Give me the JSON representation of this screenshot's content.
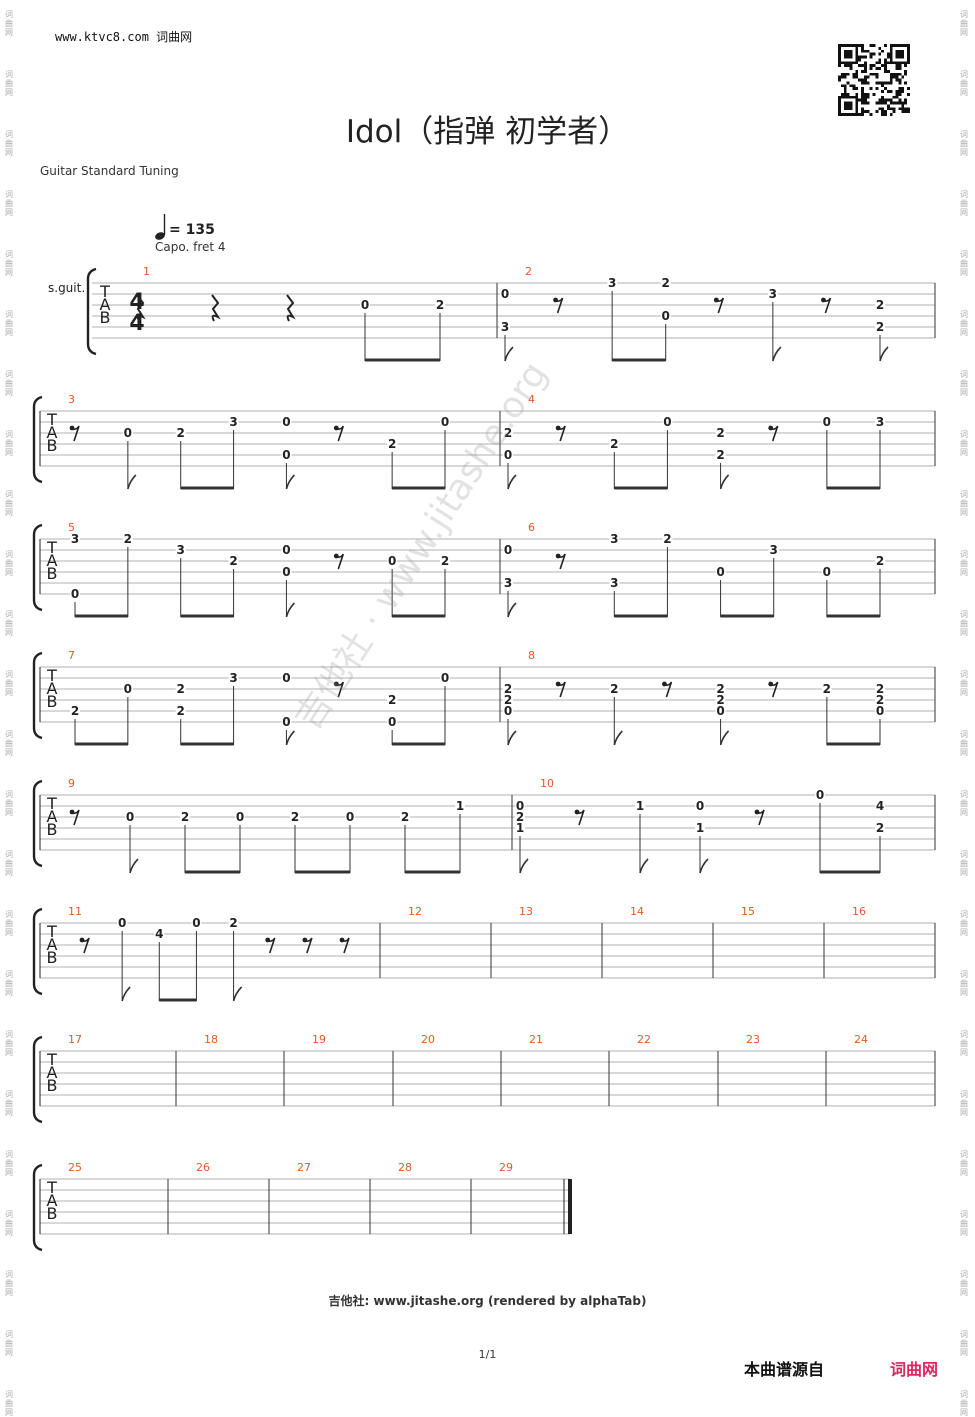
{
  "header": {
    "site": "www.ktvc8.com 词曲网"
  },
  "title": "Idol（指弹 初学者）",
  "tuning": "Guitar Standard Tuning",
  "tempo": {
    "value": "= 135",
    "capo": "Capo. fret 4"
  },
  "instrument": "s.guit.",
  "time_signature": "4/4",
  "tab_letters": [
    "T",
    "A",
    "B"
  ],
  "watermark": "吉他社 · www.jitashe.org",
  "footer": "吉他社: www.jitashe.org (rendered by alphaTab)",
  "page": "1/1",
  "source_label": "本曲谱源自",
  "source_site": "词曲网",
  "side_mark": "词曲网",
  "colors": {
    "bar_number": "#e05a2b",
    "source_site": "#e0245e"
  },
  "systems": [
    {
      "bars": [
        {
          "num": "1",
          "notes": [
            [
              "rest"
            ],
            [
              "rest"
            ],
            [
              "rest"
            ],
            [
              [
                2,
                "0"
              ]
            ],
            [
              [
                2,
                "2"
              ]
            ]
          ],
          "beams": [
            [
              3,
              4
            ]
          ]
        },
        {
          "num": "2",
          "notes": [
            [
              [
                1,
                "0"
              ],
              [
                4,
                "3"
              ]
            ],
            [
              "rest8"
            ],
            [
              [
                0,
                "3"
              ]
            ],
            [
              [
                0,
                "2"
              ],
              [
                3,
                "0"
              ]
            ],
            [
              "rest8"
            ],
            [
              [
                1,
                "3"
              ]
            ],
            [
              "rest8"
            ],
            [
              [
                2,
                "2"
              ],
              [
                4,
                "2"
              ]
            ]
          ],
          "beams": [
            [
              2,
              3
            ]
          ]
        }
      ]
    },
    {
      "bars": [
        {
          "num": "3",
          "notes": [
            [
              "rest8"
            ],
            [
              [
                2,
                "0"
              ]
            ],
            [
              [
                2,
                "2"
              ]
            ],
            [
              [
                1,
                "3"
              ]
            ],
            [
              [
                1,
                "0"
              ],
              [
                4,
                "0"
              ]
            ],
            [
              "rest8"
            ],
            [
              [
                3,
                "2"
              ]
            ],
            [
              [
                1,
                "0"
              ]
            ]
          ],
          "beams": [
            [
              2,
              3
            ],
            [
              6,
              7
            ]
          ]
        },
        {
          "num": "4",
          "notes": [
            [
              [
                2,
                "2"
              ],
              [
                4,
                "0"
              ]
            ],
            [
              "rest8"
            ],
            [
              [
                3,
                "2"
              ]
            ],
            [
              [
                1,
                "0"
              ]
            ],
            [
              [
                2,
                "2"
              ],
              [
                4,
                "2"
              ]
            ],
            [
              "rest8"
            ],
            [
              [
                1,
                "0"
              ]
            ],
            [
              [
                1,
                "3"
              ]
            ]
          ],
          "beams": [
            [
              2,
              3
            ],
            [
              6,
              7
            ]
          ]
        }
      ]
    },
    {
      "bars": [
        {
          "num": "5",
          "notes": [
            [
              [
                0,
                "3"
              ],
              [
                5,
                "0"
              ]
            ],
            [
              [
                0,
                "2"
              ]
            ],
            [
              [
                1,
                "3"
              ]
            ],
            [
              [
                2,
                "2"
              ]
            ],
            [
              [
                1,
                "0"
              ],
              [
                3,
                "0"
              ]
            ],
            [
              "rest8"
            ],
            [
              [
                2,
                "0"
              ]
            ],
            [
              [
                2,
                "2"
              ]
            ]
          ],
          "beams": [
            [
              0,
              1
            ],
            [
              2,
              3
            ],
            [
              6,
              7
            ]
          ]
        },
        {
          "num": "6",
          "notes": [
            [
              [
                1,
                "0"
              ],
              [
                4,
                "3"
              ]
            ],
            [
              "rest8"
            ],
            [
              [
                0,
                "3"
              ],
              [
                4,
                "3"
              ]
            ],
            [
              [
                0,
                "2"
              ]
            ],
            [
              [
                3,
                "0"
              ]
            ],
            [
              [
                1,
                "3"
              ]
            ],
            [
              [
                3,
                "0"
              ]
            ],
            [
              [
                2,
                "2"
              ]
            ]
          ],
          "beams": [
            [
              2,
              3
            ],
            [
              4,
              5
            ],
            [
              6,
              7
            ]
          ]
        }
      ]
    },
    {
      "bars": [
        {
          "num": "7",
          "notes": [
            [
              [
                4,
                "2"
              ]
            ],
            [
              [
                2,
                "0"
              ]
            ],
            [
              [
                2,
                "2"
              ],
              [
                4,
                "2"
              ]
            ],
            [
              [
                1,
                "3"
              ]
            ],
            [
              [
                1,
                "0"
              ],
              [
                5,
                "0"
              ]
            ],
            [
              "rest8"
            ],
            [
              [
                3,
                "2"
              ],
              [
                5,
                "0"
              ]
            ],
            [
              [
                1,
                "0"
              ]
            ]
          ],
          "beams": [
            [
              0,
              1
            ],
            [
              2,
              3
            ],
            [
              6,
              7
            ]
          ]
        },
        {
          "num": "8",
          "notes": [
            [
              [
                2,
                "2"
              ],
              [
                3,
                "2"
              ],
              [
                4,
                "0"
              ]
            ],
            [
              "rest8"
            ],
            [
              [
                2,
                "2"
              ]
            ],
            [
              "rest8"
            ],
            [
              [
                2,
                "2"
              ],
              [
                3,
                "2"
              ],
              [
                4,
                "0"
              ]
            ],
            [
              "rest8"
            ],
            [
              [
                2,
                "2"
              ]
            ],
            [
              [
                2,
                "2"
              ],
              [
                3,
                "2"
              ],
              [
                4,
                "0"
              ]
            ]
          ],
          "beams": [
            [
              6,
              7
            ]
          ]
        }
      ]
    },
    {
      "bars": [
        {
          "num": "9",
          "notes": [
            [
              "rest8"
            ],
            [
              [
                2,
                "0"
              ]
            ],
            [
              [
                2,
                "2"
              ]
            ],
            [
              [
                2,
                "0"
              ]
            ],
            [
              [
                2,
                "2"
              ]
            ],
            [
              [
                2,
                "0"
              ]
            ],
            [
              [
                2,
                "2"
              ]
            ],
            [
              [
                1,
                "1"
              ]
            ]
          ],
          "beams": [
            [
              2,
              3
            ],
            [
              4,
              5
            ],
            [
              6,
              7
            ]
          ]
        },
        {
          "num": "10",
          "notes": [
            [
              [
                1,
                "0"
              ],
              [
                2,
                "2"
              ],
              [
                3,
                "1"
              ]
            ],
            [
              "rest8"
            ],
            [
              [
                1,
                "1"
              ]
            ],
            [
              [
                1,
                "0"
              ],
              [
                3,
                "1"
              ]
            ],
            [
              "rest8"
            ],
            [
              [
                0,
                "0"
              ]
            ],
            [
              [
                1,
                "4"
              ],
              [
                3,
                "2"
              ]
            ]
          ],
          "beams": [
            [
              5,
              6
            ]
          ]
        }
      ]
    },
    {
      "bars": [
        {
          "num": "11",
          "notes": [
            [
              "rest8"
            ],
            [
              [
                0,
                "0"
              ]
            ],
            [
              [
                1,
                "4"
              ]
            ],
            [
              [
                0,
                "0"
              ]
            ],
            [
              [
                0,
                "2"
              ]
            ],
            [
              "rest8"
            ],
            [
              "rest8"
            ],
            [
              "rest8"
            ]
          ],
          "beams": [
            [
              2,
              3
            ]
          ]
        },
        {
          "num": "12",
          "notes": [],
          "beams": []
        },
        {
          "num": "13",
          "notes": [],
          "beams": []
        },
        {
          "num": "14",
          "notes": [],
          "beams": []
        },
        {
          "num": "15",
          "notes": [],
          "beams": []
        },
        {
          "num": "16",
          "notes": [],
          "beams": []
        }
      ]
    },
    {
      "bars": [
        {
          "num": "17",
          "notes": [],
          "beams": []
        },
        {
          "num": "18",
          "notes": [],
          "beams": []
        },
        {
          "num": "19",
          "notes": [],
          "beams": []
        },
        {
          "num": "20",
          "notes": [],
          "beams": []
        },
        {
          "num": "21",
          "notes": [],
          "beams": []
        },
        {
          "num": "22",
          "notes": [],
          "beams": []
        },
        {
          "num": "23",
          "notes": [],
          "beams": []
        },
        {
          "num": "24",
          "notes": [],
          "beams": []
        }
      ]
    },
    {
      "bars": [
        {
          "num": "25",
          "notes": [],
          "beams": []
        },
        {
          "num": "26",
          "notes": [],
          "beams": []
        },
        {
          "num": "27",
          "notes": [],
          "beams": []
        },
        {
          "num": "28",
          "notes": [],
          "beams": []
        },
        {
          "num": "29",
          "notes": [],
          "beams": []
        }
      ]
    }
  ]
}
